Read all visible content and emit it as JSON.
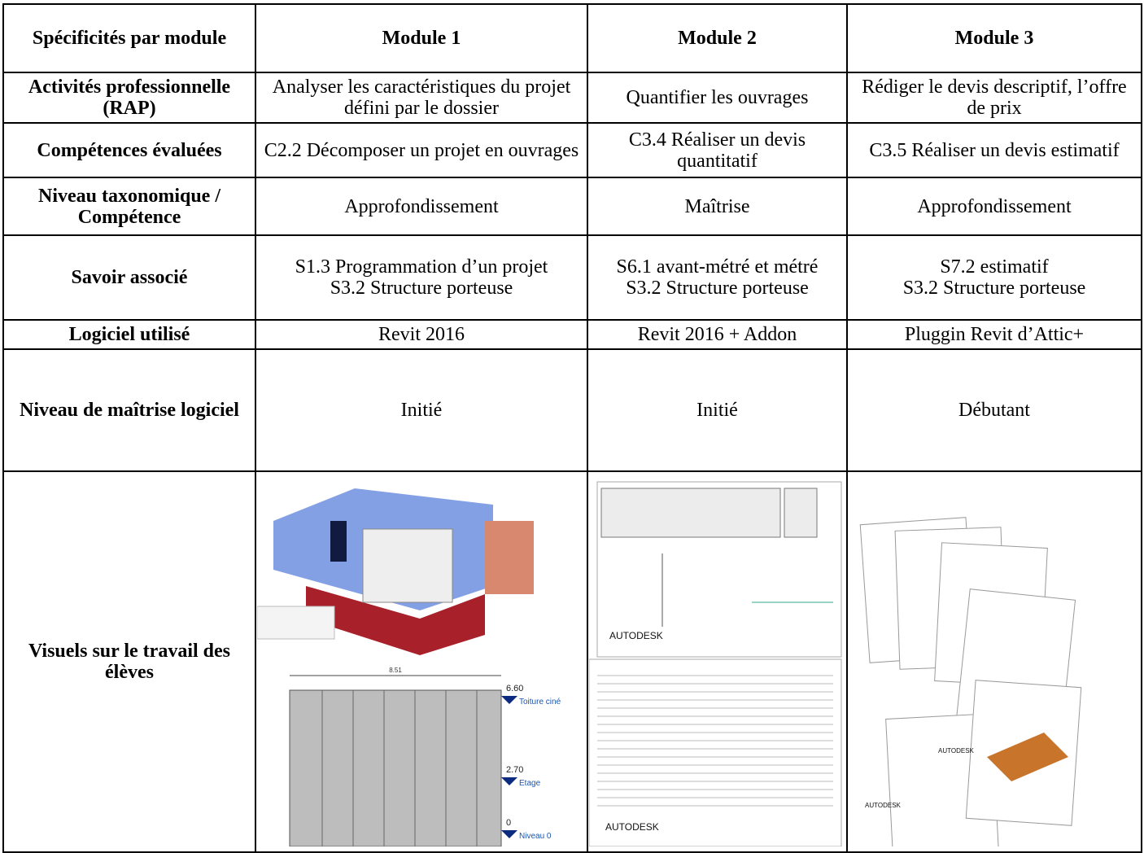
{
  "table": {
    "header": [
      "Spécificités par module",
      "Module 1",
      "Module 2",
      "Module 3"
    ],
    "rows": [
      [
        "Activités professionnelle (RAP)",
        "Analyser les caractéristiques du projet défini par le dossier",
        "Quantifier les ouvrages",
        "Rédiger le devis descriptif, l’offre de prix"
      ],
      [
        "Compétences évaluées",
        "C2.2 Décomposer un projet en ouvrages",
        "C3.4 Réaliser un devis quantitatif",
        "C3.5 Réaliser un devis estimatif"
      ],
      [
        "Niveau taxonomique / Compétence",
        "Approfondissement",
        "Maîtrise",
        "Approfondissement"
      ],
      [
        "Savoir associé",
        "S1.3 Programmation d’un projet\nS3.2 Structure porteuse",
        "S6.1 avant-métré et métré\nS3.2 Structure porteuse",
        "S7.2 estimatif\nS3.2 Structure porteuse"
      ],
      [
        "Logiciel utilisé",
        "Revit 2016",
        "Revit 2016 + Addon",
        "Pluggin Revit d’Attic+"
      ],
      [
        "Niveau de maîtrise logiciel",
        "Initié",
        "Initié",
        "Débutant"
      ]
    ],
    "visuals_label": "Visuels sur le travail des élèves",
    "visuals": {
      "module_1": {
        "width": "8.51",
        "levels": [
          [
            "6.60",
            "Toiture ciné"
          ],
          [
            "2.70",
            "Etage"
          ],
          [
            "0",
            "Niveau 0"
          ]
        ]
      },
      "module_2": {
        "logos": [
          "AUTODESK",
          "AUTODESK"
        ]
      },
      "module_3": {
        "logos": [
          "AUTODESK",
          "AUTODESK"
        ]
      }
    }
  }
}
